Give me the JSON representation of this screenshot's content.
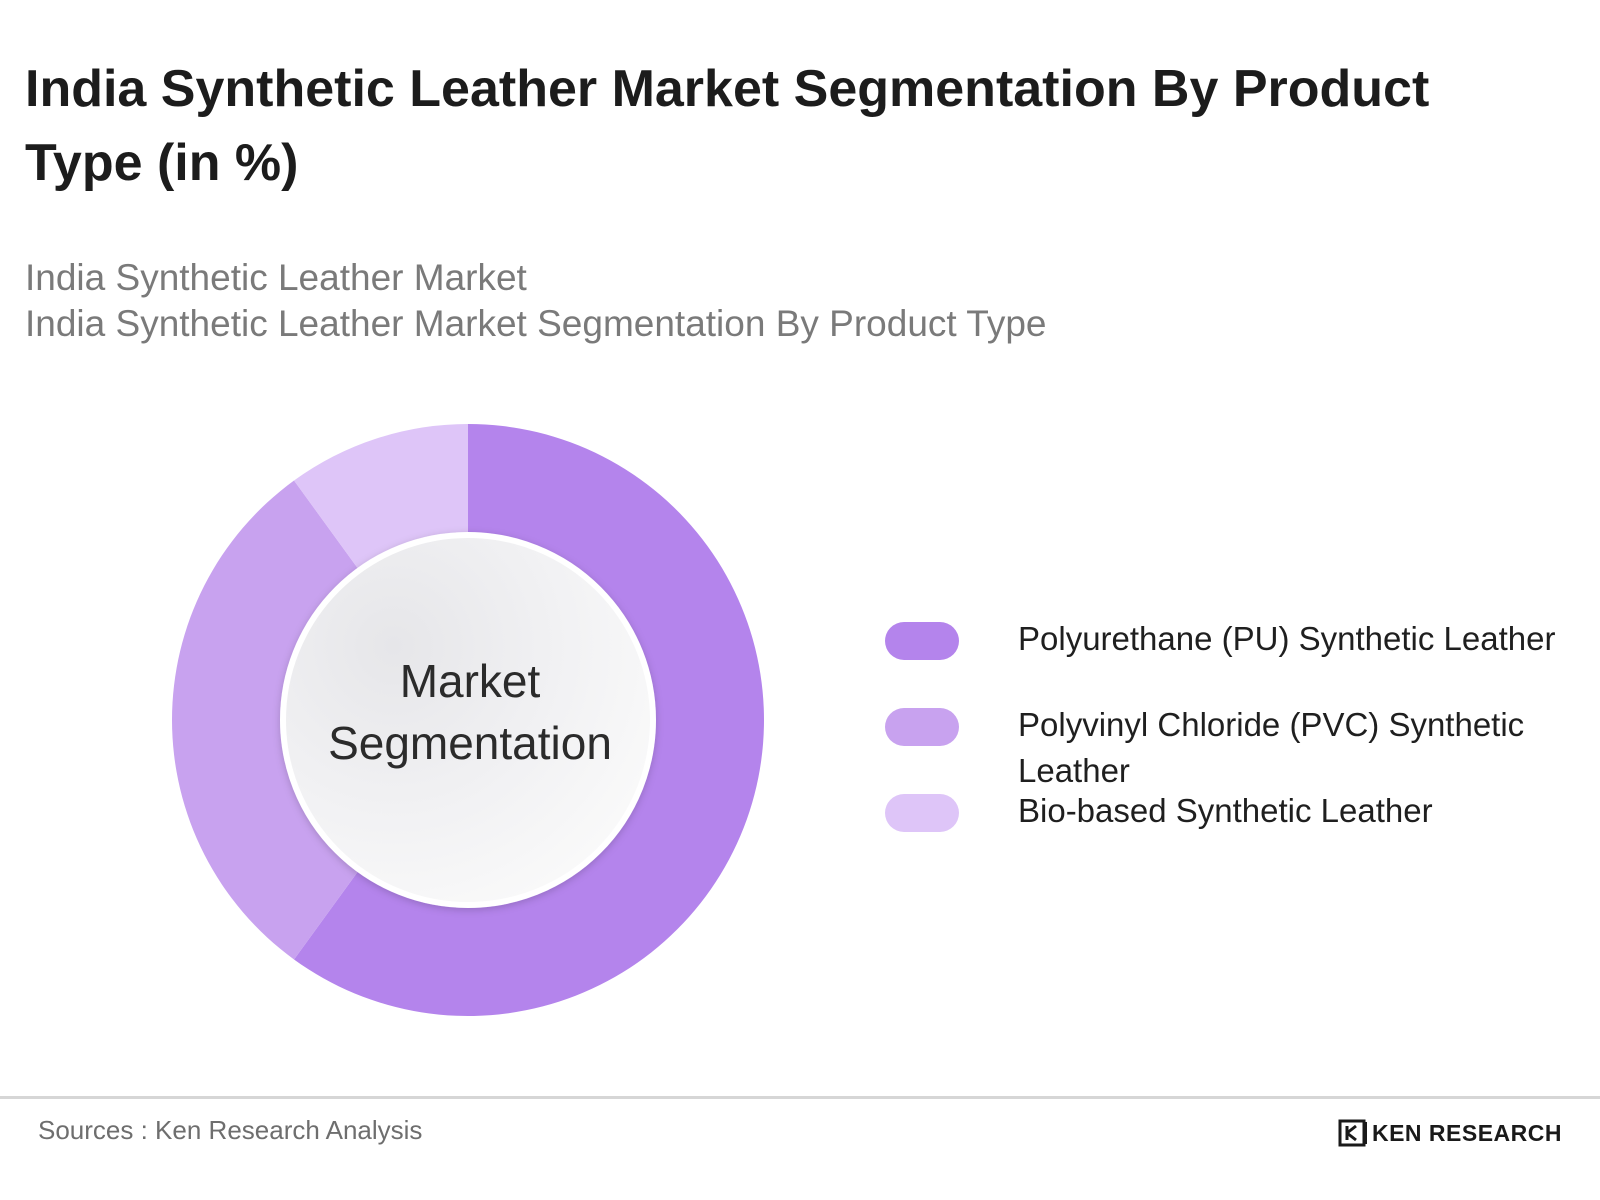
{
  "header": {
    "title": "India Synthetic Leather Market Segmentation By Product Type (in %)",
    "subtitle_lines": [
      "India Synthetic Leather Market",
      "India Synthetic Leather Market Segmentation By Product Type"
    ]
  },
  "chart_data": {
    "type": "pie",
    "variant": "donut",
    "title": "India Synthetic Leather Market Segmentation By Product Type (in %)",
    "center_label_lines": [
      "Market",
      "Segmentation"
    ],
    "categories": [
      "Polyurethane (PU) Synthetic Leather",
      "Polyvinyl Chloride (PVC) Synthetic Leather",
      "Bio-based Synthetic Leather"
    ],
    "values": [
      60,
      30,
      10
    ],
    "colors": [
      "#b484ec",
      "#c8a2ef",
      "#dec5f8"
    ],
    "legend_position": "right"
  },
  "legend": {
    "items": [
      {
        "label_lines": [
          "Polyurethane (PU) Synthetic Leather"
        ],
        "color": "#b484ec"
      },
      {
        "label_lines": [
          "Polyvinyl Chloride (PVC) Synthetic",
          "Leather"
        ],
        "color": "#c8a2ef"
      },
      {
        "label_lines": [
          "Bio-based Synthetic Leather"
        ],
        "color": "#dec5f8"
      }
    ]
  },
  "footer": {
    "source": "Sources : Ken Research Analysis",
    "brand_text": "KEN RESEARCH",
    "brand_logo_icon": "ken-research-logo-icon"
  }
}
